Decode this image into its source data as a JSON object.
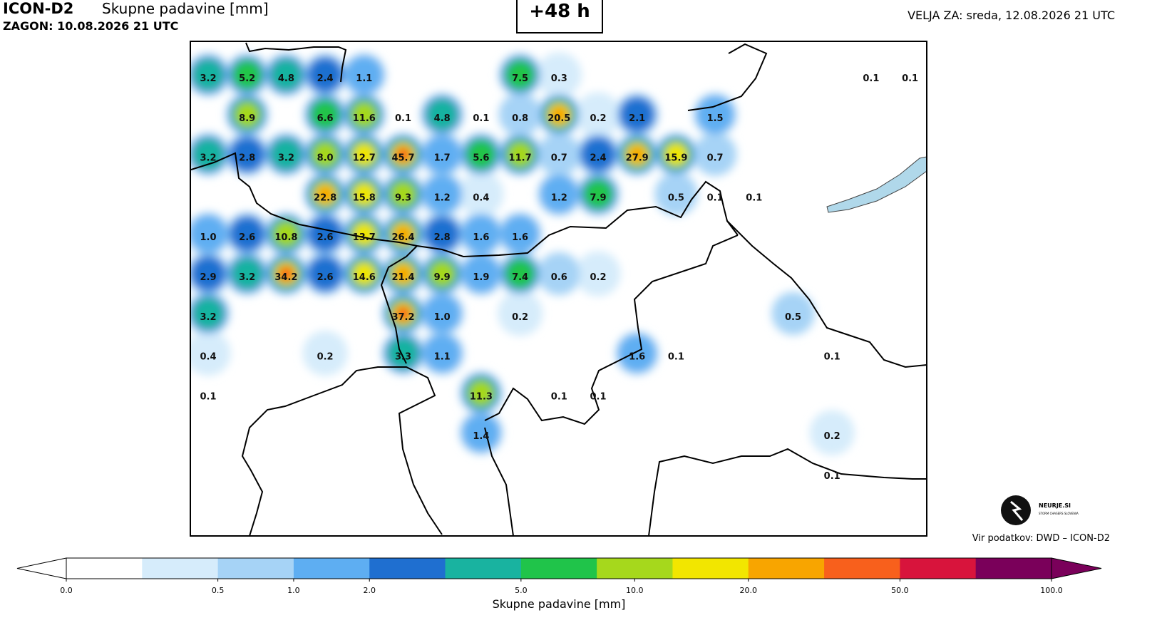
{
  "header": {
    "model": "ICON-D2",
    "parameter": "Skupne padavine [mm]",
    "run": "ZAGON: 10.08.2026 21 UTC",
    "lead": "+48 h",
    "valid": "VELJA ZA: sreda, 12.08.2026 21 UTC"
  },
  "map": {
    "grid_values": [
      [
        "3.2",
        "5.2",
        "4.8",
        "2.4",
        "1.1",
        null,
        null,
        null,
        "7.5",
        "0.3",
        null,
        null,
        null,
        null,
        null,
        null,
        null,
        "0.1",
        "0.1"
      ],
      [
        null,
        "8.9",
        null,
        "6.6",
        "11.6",
        "0.1",
        "4.8",
        "0.1",
        "0.8",
        "20.5",
        "0.2",
        "2.1",
        null,
        "1.5",
        null,
        null,
        null,
        null,
        null
      ],
      [
        "3.2",
        "2.8",
        "3.2",
        "8.0",
        "12.7",
        "45.7",
        "1.7",
        "5.6",
        "11.7",
        "0.7",
        "2.4",
        "27.9",
        "15.9",
        "0.7",
        null,
        null,
        null,
        null,
        null
      ],
      [
        null,
        null,
        null,
        "22.8",
        "15.8",
        "9.3",
        "1.2",
        "0.4",
        null,
        "1.2",
        "7.9",
        null,
        "0.5",
        "0.1",
        "0.1",
        null,
        null,
        null,
        null
      ],
      [
        "1.0",
        "2.6",
        "10.8",
        "2.6",
        "13.7",
        "26.4",
        "2.8",
        "1.6",
        "1.6",
        null,
        null,
        null,
        null,
        null,
        null,
        null,
        null,
        null,
        null
      ],
      [
        "2.9",
        "3.2",
        "34.2",
        "2.6",
        "14.6",
        "21.4",
        "9.9",
        "1.9",
        "7.4",
        "0.6",
        "0.2",
        null,
        null,
        null,
        null,
        null,
        null,
        null,
        null
      ],
      [
        "3.2",
        null,
        null,
        null,
        null,
        "37.2",
        "1.0",
        null,
        "0.2",
        null,
        null,
        null,
        null,
        null,
        null,
        "0.5",
        null,
        null,
        null
      ],
      [
        "0.4",
        null,
        null,
        "0.2",
        null,
        "3.3",
        "1.1",
        null,
        null,
        null,
        null,
        "1.6",
        "0.1",
        null,
        null,
        null,
        "0.1",
        null,
        null
      ],
      [
        "0.1",
        null,
        null,
        null,
        null,
        null,
        null,
        "11.3",
        null,
        "0.1",
        "0.1",
        null,
        null,
        null,
        null,
        null,
        null,
        null,
        null
      ],
      [
        null,
        null,
        null,
        null,
        null,
        null,
        null,
        "1.4",
        null,
        null,
        null,
        null,
        null,
        null,
        null,
        null,
        "0.2",
        null,
        null
      ],
      [
        null,
        null,
        null,
        null,
        null,
        null,
        null,
        null,
        null,
        null,
        null,
        null,
        null,
        null,
        null,
        null,
        "0.1",
        null,
        null
      ]
    ]
  },
  "logo": {
    "name": "NEURJE.SI",
    "tagline": "STORM CHASERS SLOVENIA"
  },
  "source": "Vir podatkov: DWD – ICON-D2",
  "colorbar": {
    "label": "Skupne padavine [mm]",
    "levels": [
      0,
      0.2,
      0.5,
      1,
      2,
      3,
      5,
      8,
      12,
      20,
      30,
      50,
      75,
      100
    ],
    "colors": [
      "#ffffff",
      "#d6ecfb",
      "#a6d3f6",
      "#5eaef2",
      "#1f6fd0",
      "#19b3a0",
      "#20c44a",
      "#a6d81c",
      "#f2e600",
      "#f8a500",
      "#f8601c",
      "#d8143c",
      "#7a005a"
    ],
    "ticks": [
      {
        "value": 0,
        "label": "0.0"
      },
      {
        "value": 0.5,
        "label": "0.5"
      },
      {
        "value": 1,
        "label": "1.0"
      },
      {
        "value": 2,
        "label": "2.0"
      },
      {
        "value": 5,
        "label": "5.0"
      },
      {
        "value": 10,
        "label": "10.0"
      },
      {
        "value": 20,
        "label": "20.0"
      },
      {
        "value": 50,
        "label": "50.0"
      },
      {
        "value": 100,
        "label": "100.0"
      }
    ]
  }
}
